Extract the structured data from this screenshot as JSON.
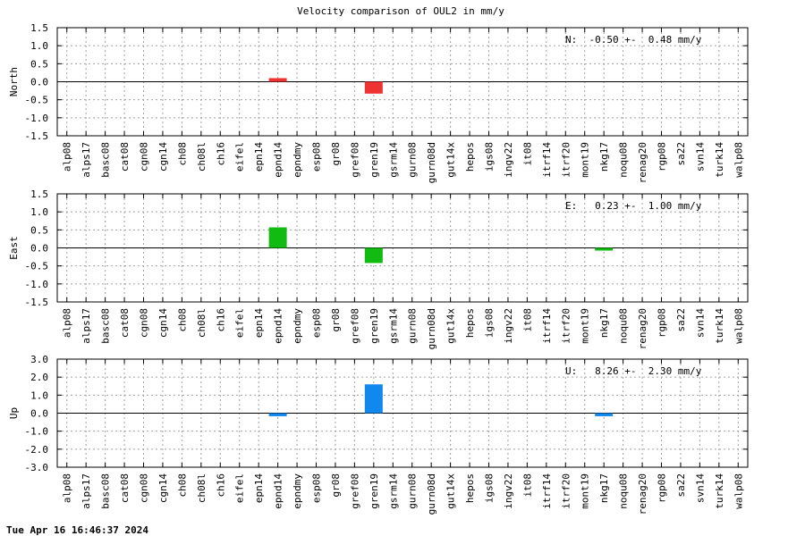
{
  "chart_data": {
    "title": "Velocity comparison of OUL2 in mm/y",
    "timestamp": "Tue Apr 16 16:46:37 2024",
    "type": "bar",
    "categories": [
      "alp08",
      "alps17",
      "basc08",
      "cat08",
      "cgn08",
      "cgn14",
      "ch08",
      "ch08l",
      "ch16",
      "eifel",
      "epn14",
      "epnd14",
      "epndmy",
      "esp08",
      "gr08",
      "gref08",
      "gren19",
      "gsrm14",
      "gurn08",
      "gurn08d",
      "gut14x",
      "hepos",
      "igs08",
      "ingv22",
      "it08",
      "itrf14",
      "itrf20",
      "mont19",
      "nkg17",
      "noqu08",
      "renag20",
      "rgp08",
      "sa22",
      "svn14",
      "turk14",
      "walp08"
    ],
    "panels": [
      {
        "ylabel": "North",
        "ylim": [
          -1.5,
          1.5
        ],
        "yticks": [
          "1.5",
          "1.0",
          "0.5",
          "0.0",
          "-0.5",
          "-1.0",
          "-1.5"
        ],
        "stat": "N:  -0.50 +-  0.48 mm/y",
        "color": "#ee3333",
        "bars": [
          {
            "category": "epnd14",
            "value": 0.1
          },
          {
            "category": "gren19",
            "value": -0.33
          }
        ]
      },
      {
        "ylabel": "East",
        "ylim": [
          -1.5,
          1.5
        ],
        "yticks": [
          "1.5",
          "1.0",
          "0.5",
          "0.0",
          "-0.5",
          "-1.0",
          "-1.5"
        ],
        "stat": "E:   0.23 +-  1.00 mm/y",
        "color": "#11bb11",
        "bars": [
          {
            "category": "epnd14",
            "value": 0.57
          },
          {
            "category": "gren19",
            "value": -0.42
          },
          {
            "category": "nkg17",
            "value": -0.03
          }
        ]
      },
      {
        "ylabel": "Up",
        "ylim": [
          -3.0,
          3.0
        ],
        "yticks": [
          "3.0",
          "2.0",
          "1.0",
          "0.0",
          "-1.0",
          "-2.0",
          "-3.0"
        ],
        "stat": "U:   8.26 +-  2.30 mm/y",
        "color": "#1188ee",
        "bars": [
          {
            "category": "epnd14",
            "value": -0.17
          },
          {
            "category": "gren19",
            "value": 1.6
          },
          {
            "category": "nkg17",
            "value": -0.17
          }
        ]
      }
    ],
    "grid": true
  }
}
